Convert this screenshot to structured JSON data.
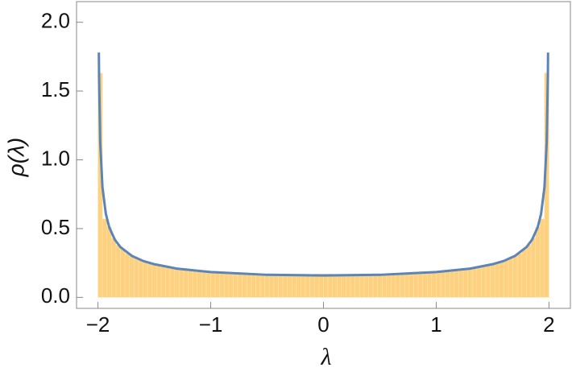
{
  "chart_data": {
    "type": "histogram",
    "bins": [
      -2,
      -1.96,
      -1.92,
      -1.88,
      -1.84,
      -1.8,
      -1.76,
      -1.72,
      -1.68,
      -1.64,
      -1.6,
      -1.56,
      -1.52,
      -1.48,
      -1.44,
      -1.4,
      -1.36,
      -1.32,
      -1.28,
      -1.24,
      -1.2,
      -1.16,
      -1.12,
      -1.08,
      -1.04,
      -1,
      -0.96,
      -0.92,
      -0.88,
      -0.84,
      -0.8,
      -0.76,
      -0.72,
      -0.68,
      -0.64,
      -0.6,
      -0.56,
      -0.52,
      -0.48,
      -0.44,
      -0.4,
      -0.36,
      -0.32,
      -0.28,
      -0.24,
      -0.2,
      -0.16,
      -0.12,
      -0.08,
      -0.04,
      0,
      0.04,
      0.08,
      0.12,
      0.16,
      0.2,
      0.24,
      0.28,
      0.32,
      0.36,
      0.4,
      0.44,
      0.48,
      0.52,
      0.56,
      0.6,
      0.64,
      0.68,
      0.72,
      0.76,
      0.8,
      0.84,
      0.88,
      0.92,
      0.96,
      1,
      1.04,
      1.08,
      1.12,
      1.16,
      1.2,
      1.24,
      1.28,
      1.32,
      1.36,
      1.4,
      1.44,
      1.48,
      1.52,
      1.56,
      1.6,
      1.64,
      1.68,
      1.72,
      1.76,
      1.8,
      1.84,
      1.88,
      1.92,
      1.96,
      2
    ],
    "values": [
      1.63,
      0.57,
      0.51,
      0.43,
      0.38,
      0.35,
      0.32,
      0.3,
      0.29,
      0.27,
      0.26,
      0.25,
      0.24,
      0.23,
      0.23,
      0.22,
      0.21,
      0.21,
      0.2,
      0.2,
      0.2,
      0.19,
      0.19,
      0.19,
      0.19,
      0.18,
      0.18,
      0.18,
      0.18,
      0.17,
      0.17,
      0.17,
      0.17,
      0.17,
      0.17,
      0.17,
      0.17,
      0.16,
      0.16,
      0.16,
      0.16,
      0.16,
      0.16,
      0.16,
      0.16,
      0.16,
      0.16,
      0.16,
      0.17,
      0.17,
      0.17,
      0.17,
      0.16,
      0.16,
      0.16,
      0.16,
      0.16,
      0.16,
      0.16,
      0.16,
      0.16,
      0.16,
      0.16,
      0.17,
      0.17,
      0.17,
      0.17,
      0.17,
      0.17,
      0.17,
      0.17,
      0.18,
      0.18,
      0.18,
      0.18,
      0.19,
      0.19,
      0.19,
      0.19,
      0.2,
      0.2,
      0.2,
      0.21,
      0.21,
      0.22,
      0.23,
      0.23,
      0.24,
      0.25,
      0.26,
      0.27,
      0.29,
      0.3,
      0.32,
      0.35,
      0.38,
      0.43,
      0.51,
      0.57,
      1.63
    ],
    "color": "#fdd17f",
    "series": [
      {
        "type": "line",
        "color": "#5b84b8",
        "x": [
          -1.992,
          -1.99,
          -1.98,
          -1.96,
          -1.93,
          -1.9,
          -1.85,
          -1.8,
          -1.7,
          -1.6,
          -1.5,
          -1.3,
          -1,
          -0.5,
          0,
          0.5,
          1,
          1.3,
          1.5,
          1.6,
          1.7,
          1.8,
          1.85,
          1.9,
          1.93,
          1.96,
          1.98,
          1.99,
          1.992
        ],
        "values": [
          1.78,
          1.594,
          1.128,
          0.8,
          0.607,
          0.51,
          0.419,
          0.365,
          0.302,
          0.265,
          0.241,
          0.209,
          0.184,
          0.164,
          0.159,
          0.164,
          0.184,
          0.209,
          0.241,
          0.265,
          0.302,
          0.365,
          0.419,
          0.51,
          0.607,
          0.8,
          1.128,
          1.594,
          1.78
        ]
      }
    ],
    "x_label": "λ",
    "y_label": "ρ(λ)",
    "xlim": [
      -2.19,
      2.19
    ],
    "ylim": [
      -0.08,
      2.15
    ],
    "xticks": [
      {
        "value": -2,
        "label": "−2"
      },
      {
        "value": -1,
        "label": "−1"
      },
      0,
      1,
      2
    ],
    "yticks": [
      {
        "value": 0,
        "label": "0.0"
      },
      {
        "value": 0.5,
        "label": "0.5"
      },
      {
        "value": 1,
        "label": "1.0"
      },
      {
        "value": 1.5,
        "label": "1.5"
      },
      {
        "value": 2,
        "label": "2.0"
      }
    ]
  }
}
